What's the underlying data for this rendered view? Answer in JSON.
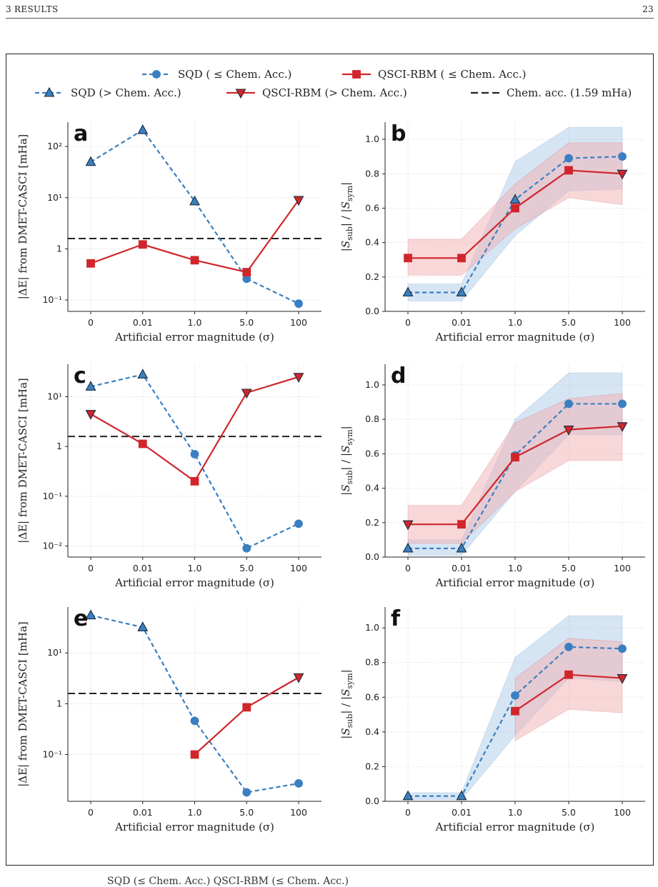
{
  "page": {
    "header_left": "3   RESULTS",
    "header_right": "23",
    "bottom_text": "SQD (≤ Chem. Acc.)     QSCI-RBM (≤ Chem. Acc.)"
  },
  "legend": [
    {
      "key": "sqd_le",
      "label": "SQD ( ≤ Chem. Acc.)",
      "color": "#3a7fc1",
      "marker": "circle",
      "dash": "dashed"
    },
    {
      "key": "qsci_le",
      "label": "QSCI-RBM ( ≤ Chem. Acc.)",
      "color": "#d0262b",
      "marker": "square",
      "dash": "solid"
    },
    {
      "key": "sqd_gt",
      "label": "SQD (> Chem. Acc.)",
      "color": "#3a7fc1",
      "marker": "triangle-up",
      "dash": "dashed"
    },
    {
      "key": "qsci_gt",
      "label": "QSCI-RBM (> Chem. Acc.)",
      "color": "#d0262b",
      "marker": "triangle-down",
      "dash": "solid"
    },
    {
      "key": "chem",
      "label": "Chem. acc. (1.59 mHa)",
      "color": "#222222",
      "marker": "none",
      "dash": "longdash"
    }
  ],
  "colors": {
    "sqd": "#3a7fc1",
    "qsci": "#d0262b",
    "sqd_fill": "#aecbe8",
    "qsci_fill": "#f2b0b3"
  },
  "chart_data": [
    {
      "panel": "a",
      "type": "line",
      "yscale": "log",
      "ylim": [
        0.06,
        300
      ],
      "yticks": [
        {
          "v": 0.1,
          "label": "10⁻¹"
        },
        {
          "v": 1,
          "label": "1"
        },
        {
          "v": 10,
          "label": "10¹"
        },
        {
          "v": 100,
          "label": "10²"
        }
      ],
      "categories": [
        "0",
        "0.01",
        "1.0",
        "5.0",
        "100"
      ],
      "xlabel": "Artificial error magnitude (σ)",
      "ylabel": "|ΔE| from DMET-CASCI [mHa]",
      "chem_acc": 1.59,
      "series": [
        {
          "name": "SQD",
          "values": [
            50,
            210,
            8.5,
            0.26,
            0.085
          ],
          "within_chem_acc": [
            false,
            false,
            false,
            true,
            true
          ]
        },
        {
          "name": "QSCI-RBM",
          "values": [
            0.52,
            1.22,
            0.6,
            0.35,
            9.0
          ],
          "within_chem_acc": [
            true,
            true,
            true,
            true,
            false
          ]
        }
      ]
    },
    {
      "panel": "b",
      "type": "line",
      "yscale": "linear",
      "ylim": [
        0,
        1.1
      ],
      "yticks": [
        {
          "v": 0,
          "label": "0.0"
        },
        {
          "v": 0.2,
          "label": "0.2"
        },
        {
          "v": 0.4,
          "label": "0.4"
        },
        {
          "v": 0.6,
          "label": "0.6"
        },
        {
          "v": 0.8,
          "label": "0.8"
        },
        {
          "v": 1.0,
          "label": "1.0"
        }
      ],
      "categories": [
        "0",
        "0.01",
        "1.0",
        "5.0",
        "100"
      ],
      "xlabel": "Artificial error magnitude (σ)",
      "ylabel": "|S_sub| / |S_sym|",
      "series": [
        {
          "name": "SQD",
          "values": [
            0.11,
            0.11,
            0.65,
            0.89,
            0.9
          ],
          "lower": [
            0.06,
            0.06,
            0.44,
            0.7,
            0.71
          ],
          "upper": [
            0.16,
            0.16,
            0.87,
            1.07,
            1.07
          ],
          "within_chem_acc": [
            false,
            false,
            false,
            true,
            true
          ]
        },
        {
          "name": "QSCI-RBM",
          "values": [
            0.31,
            0.31,
            0.6,
            0.82,
            0.8
          ],
          "lower": [
            0.21,
            0.21,
            0.48,
            0.66,
            0.62
          ],
          "upper": [
            0.42,
            0.42,
            0.74,
            0.98,
            0.98
          ],
          "within_chem_acc": [
            true,
            true,
            true,
            true,
            false
          ]
        }
      ]
    },
    {
      "panel": "c",
      "type": "line",
      "yscale": "log",
      "ylim": [
        0.006,
        45
      ],
      "yticks": [
        {
          "v": 0.01,
          "label": "10⁻²"
        },
        {
          "v": 0.1,
          "label": "10⁻¹"
        },
        {
          "v": 1,
          "label": "1"
        },
        {
          "v": 10,
          "label": "10¹"
        }
      ],
      "categories": [
        "0",
        "0.01",
        "1.0",
        "5.0",
        "100"
      ],
      "xlabel": "Artificial error magnitude (σ)",
      "ylabel": "|ΔE| from DMET-CASCI [mHa]",
      "chem_acc": 1.59,
      "series": [
        {
          "name": "SQD",
          "values": [
            16,
            28,
            0.7,
            0.009,
            0.028
          ],
          "within_chem_acc": [
            false,
            false,
            true,
            true,
            true
          ]
        },
        {
          "name": "QSCI-RBM",
          "values": [
            4.5,
            1.13,
            0.2,
            12,
            25
          ],
          "within_chem_acc": [
            false,
            true,
            true,
            false,
            false
          ]
        }
      ]
    },
    {
      "panel": "d",
      "type": "line",
      "yscale": "linear",
      "ylim": [
        0,
        1.12
      ],
      "yticks": [
        {
          "v": 0,
          "label": "0.0"
        },
        {
          "v": 0.2,
          "label": "0.2"
        },
        {
          "v": 0.4,
          "label": "0.4"
        },
        {
          "v": 0.6,
          "label": "0.6"
        },
        {
          "v": 0.8,
          "label": "0.8"
        },
        {
          "v": 1.0,
          "label": "1.0"
        }
      ],
      "categories": [
        "0",
        "0.01",
        "1.0",
        "5.0",
        "100"
      ],
      "xlabel": "Artificial error magnitude (σ)",
      "ylabel": "|S_sub| / |S_sym|",
      "series": [
        {
          "name": "SQD",
          "values": [
            0.05,
            0.05,
            0.59,
            0.89,
            0.89
          ],
          "lower": [
            0.01,
            0.01,
            0.38,
            0.71,
            0.71
          ],
          "upper": [
            0.1,
            0.1,
            0.8,
            1.07,
            1.07
          ],
          "within_chem_acc": [
            false,
            false,
            true,
            true,
            true
          ]
        },
        {
          "name": "QSCI-RBM",
          "values": [
            0.19,
            0.19,
            0.58,
            0.74,
            0.76
          ],
          "lower": [
            0.08,
            0.08,
            0.38,
            0.56,
            0.56
          ],
          "upper": [
            0.3,
            0.3,
            0.78,
            0.92,
            0.95
          ],
          "within_chem_acc": [
            false,
            true,
            true,
            false,
            false
          ]
        }
      ]
    },
    {
      "panel": "e",
      "type": "line",
      "yscale": "log",
      "ylim": [
        0.012,
        80
      ],
      "yticks": [
        {
          "v": 0.1,
          "label": "10⁻¹"
        },
        {
          "v": 1,
          "label": "1"
        },
        {
          "v": 10,
          "label": "10¹"
        }
      ],
      "categories": [
        "0",
        "0.01",
        "1.0",
        "5.0",
        "100"
      ],
      "xlabel": "Artificial error magnitude (σ)",
      "ylabel": "|ΔE| from DMET-CASCI [mHa]",
      "chem_acc": 1.59,
      "series": [
        {
          "name": "SQD",
          "values": [
            55,
            32,
            0.46,
            0.018,
            0.027
          ],
          "within_chem_acc": [
            false,
            false,
            true,
            true,
            true
          ]
        },
        {
          "name": "QSCI-RBM",
          "values": [
            null,
            null,
            0.1,
            0.85,
            3.3
          ],
          "within_chem_acc": [
            null,
            null,
            true,
            true,
            false
          ]
        }
      ]
    },
    {
      "panel": "f",
      "type": "line",
      "yscale": "linear",
      "ylim": [
        0,
        1.12
      ],
      "yticks": [
        {
          "v": 0,
          "label": "0.0"
        },
        {
          "v": 0.2,
          "label": "0.2"
        },
        {
          "v": 0.4,
          "label": "0.4"
        },
        {
          "v": 0.6,
          "label": "0.6"
        },
        {
          "v": 0.8,
          "label": "0.8"
        },
        {
          "v": 1.0,
          "label": "1.0"
        }
      ],
      "categories": [
        "0",
        "0.01",
        "1.0",
        "5.0",
        "100"
      ],
      "xlabel": "Artificial error magnitude (σ)",
      "ylabel": "|S_sub| / |S_sym|",
      "series": [
        {
          "name": "SQD",
          "values": [
            0.03,
            0.03,
            0.61,
            0.89,
            0.88
          ],
          "lower": [
            0.01,
            0.01,
            0.38,
            0.71,
            0.69
          ],
          "upper": [
            0.05,
            0.05,
            0.83,
            1.07,
            1.07
          ],
          "within_chem_acc": [
            false,
            false,
            true,
            true,
            true
          ]
        },
        {
          "name": "QSCI-RBM",
          "values": [
            null,
            null,
            0.52,
            0.73,
            0.71
          ],
          "lower": [
            null,
            null,
            0.35,
            0.53,
            0.51
          ],
          "upper": [
            null,
            null,
            0.71,
            0.94,
            0.92
          ],
          "within_chem_acc": [
            null,
            null,
            true,
            true,
            false
          ]
        }
      ]
    }
  ]
}
